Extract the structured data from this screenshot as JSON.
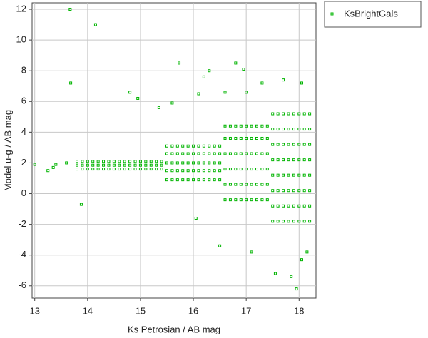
{
  "chart_data": {
    "type": "scatter",
    "x_label": "Ks Petrosian / AB mag",
    "y_label": "Model u-g / AB mag",
    "xlim": [
      12.95,
      18.32
    ],
    "ylim": [
      -6.8,
      12.42
    ],
    "xticks": [
      13,
      14,
      15,
      16,
      17,
      18
    ],
    "yticks": [
      -6,
      -4,
      -2,
      0,
      2,
      4,
      6,
      8,
      10,
      12
    ],
    "grid": true,
    "legend": "outside-right",
    "series": [
      {
        "name": "KsBrightGals",
        "color": "#00b400",
        "x": [
          13.8,
          13.8,
          13.8,
          13.9,
          13.9,
          13.9,
          14.0,
          14.0,
          14.0,
          14.1,
          14.1,
          14.1,
          14.2,
          14.2,
          14.2,
          14.3,
          14.3,
          14.3,
          14.4,
          14.4,
          14.4,
          14.5,
          14.5,
          14.5,
          14.6,
          14.6,
          14.6,
          14.7,
          14.7,
          14.7,
          14.8,
          14.8,
          14.8,
          14.9,
          14.9,
          14.9,
          15.0,
          15.0,
          15.0,
          15.1,
          15.1,
          15.1,
          15.2,
          15.2,
          15.2,
          15.3,
          15.3,
          15.3,
          15.4,
          15.4,
          15.4,
          15.5,
          15.5,
          15.5,
          15.5,
          15.5,
          15.6,
          15.6,
          15.6,
          15.6,
          15.6,
          15.7,
          15.7,
          15.7,
          15.7,
          15.7,
          15.8,
          15.8,
          15.8,
          15.8,
          15.8,
          15.9,
          15.9,
          15.9,
          15.9,
          15.9,
          16.0,
          16.0,
          16.0,
          16.0,
          16.0,
          16.1,
          16.1,
          16.1,
          16.1,
          16.1,
          16.2,
          16.2,
          16.2,
          16.2,
          16.2,
          16.3,
          16.3,
          16.3,
          16.3,
          16.3,
          16.4,
          16.4,
          16.4,
          16.4,
          16.4,
          16.5,
          16.5,
          16.5,
          16.5,
          16.5,
          16.6,
          16.6,
          16.6,
          16.6,
          16.6,
          16.6,
          16.7,
          16.7,
          16.7,
          16.7,
          16.7,
          16.7,
          16.8,
          16.8,
          16.8,
          16.8,
          16.8,
          16.8,
          16.9,
          16.9,
          16.9,
          16.9,
          16.9,
          16.9,
          17.0,
          17.0,
          17.0,
          17.0,
          17.0,
          17.0,
          17.1,
          17.1,
          17.1,
          17.1,
          17.1,
          17.1,
          17.2,
          17.2,
          17.2,
          17.2,
          17.2,
          17.2,
          17.3,
          17.3,
          17.3,
          17.3,
          17.3,
          17.3,
          17.4,
          17.4,
          17.4,
          17.4,
          17.4,
          17.4,
          17.5,
          17.5,
          17.5,
          17.5,
          17.5,
          17.5,
          17.5,
          17.5,
          17.6,
          17.6,
          17.6,
          17.6,
          17.6,
          17.6,
          17.6,
          17.6,
          17.7,
          17.7,
          17.7,
          17.7,
          17.7,
          17.7,
          17.7,
          17.7,
          17.8,
          17.8,
          17.8,
          17.8,
          17.8,
          17.8,
          17.8,
          17.8,
          17.9,
          17.9,
          17.9,
          17.9,
          17.9,
          17.9,
          17.9,
          17.9,
          18.0,
          18.0,
          18.0,
          18.0,
          18.0,
          18.0,
          18.0,
          18.0,
          18.1,
          18.1,
          18.1,
          18.1,
          18.1,
          18.1,
          18.1,
          18.1,
          18.2,
          18.2,
          18.2,
          18.2,
          18.2,
          18.2,
          18.2,
          18.2,
          13.67,
          14.15,
          13.68,
          14.8,
          14.95,
          15.73,
          15.6,
          15.35,
          16.05,
          13.88,
          16.3,
          16.2,
          16.8,
          17.1,
          17.55,
          17.95,
          17.85,
          18.05,
          18.15,
          16.5,
          13.25,
          13.0,
          13.35,
          13.6,
          13.4,
          17.0,
          16.95,
          17.3,
          17.7,
          18.05,
          16.1,
          16.6
        ],
        "values": [
          1.6,
          1.85,
          2.1,
          1.6,
          1.85,
          2.1,
          1.6,
          1.85,
          2.1,
          1.6,
          1.85,
          2.1,
          1.6,
          1.85,
          2.1,
          1.6,
          1.85,
          2.1,
          1.6,
          1.85,
          2.1,
          1.6,
          1.85,
          2.1,
          1.6,
          1.85,
          2.1,
          1.6,
          1.85,
          2.1,
          1.6,
          1.85,
          2.1,
          1.6,
          1.85,
          2.1,
          1.6,
          1.85,
          2.1,
          1.6,
          1.85,
          2.1,
          1.6,
          1.85,
          2.1,
          1.6,
          1.85,
          2.1,
          1.6,
          1.85,
          2.1,
          0.9,
          1.5,
          2.0,
          2.6,
          3.1,
          0.9,
          1.5,
          2.0,
          2.6,
          3.1,
          0.9,
          1.5,
          2.0,
          2.6,
          3.1,
          0.9,
          1.5,
          2.0,
          2.6,
          3.1,
          0.9,
          1.5,
          2.0,
          2.6,
          3.1,
          0.9,
          1.5,
          2.0,
          2.6,
          3.1,
          0.9,
          1.5,
          2.0,
          2.6,
          3.1,
          0.9,
          1.5,
          2.0,
          2.6,
          3.1,
          0.9,
          1.5,
          2.0,
          2.6,
          3.1,
          0.9,
          1.5,
          2.0,
          2.6,
          3.1,
          0.9,
          1.5,
          2.0,
          2.6,
          3.1,
          -0.4,
          0.6,
          1.6,
          2.6,
          3.6,
          4.4,
          -0.4,
          0.6,
          1.6,
          2.6,
          3.6,
          4.4,
          -0.4,
          0.6,
          1.6,
          2.6,
          3.6,
          4.4,
          -0.4,
          0.6,
          1.6,
          2.6,
          3.6,
          4.4,
          -0.4,
          0.6,
          1.6,
          2.6,
          3.6,
          4.4,
          -0.4,
          0.6,
          1.6,
          2.6,
          3.6,
          4.4,
          -0.4,
          0.6,
          1.6,
          2.6,
          3.6,
          4.4,
          -0.4,
          0.6,
          1.6,
          2.6,
          3.6,
          4.4,
          -0.4,
          0.6,
          1.6,
          2.6,
          3.6,
          4.4,
          -1.8,
          -0.8,
          0.2,
          1.2,
          2.2,
          3.2,
          4.2,
          5.2,
          -1.8,
          -0.8,
          0.2,
          1.2,
          2.2,
          3.2,
          4.2,
          5.2,
          -1.8,
          -0.8,
          0.2,
          1.2,
          2.2,
          3.2,
          4.2,
          5.2,
          -1.8,
          -0.8,
          0.2,
          1.2,
          2.2,
          3.2,
          4.2,
          5.2,
          -1.8,
          -0.8,
          0.2,
          1.2,
          2.2,
          3.2,
          4.2,
          5.2,
          -1.8,
          -0.8,
          0.2,
          1.2,
          2.2,
          3.2,
          4.2,
          5.2,
          -1.8,
          -0.8,
          0.2,
          1.2,
          2.2,
          3.2,
          4.2,
          5.2,
          -1.8,
          -0.8,
          0.2,
          1.2,
          2.2,
          3.2,
          4.2,
          5.2,
          12,
          11,
          7.2,
          6.6,
          6.2,
          8.5,
          5.9,
          5.6,
          -1.6,
          -0.7,
          8,
          7.6,
          8.5,
          -3.8,
          -5.2,
          -6.2,
          -5.4,
          -4.3,
          -3.8,
          -3.4,
          1.5,
          1.9,
          1.7,
          2,
          1.9,
          6.6,
          8.1,
          7.2,
          7.4,
          7.2,
          6.5,
          6.6
        ]
      }
    ]
  }
}
